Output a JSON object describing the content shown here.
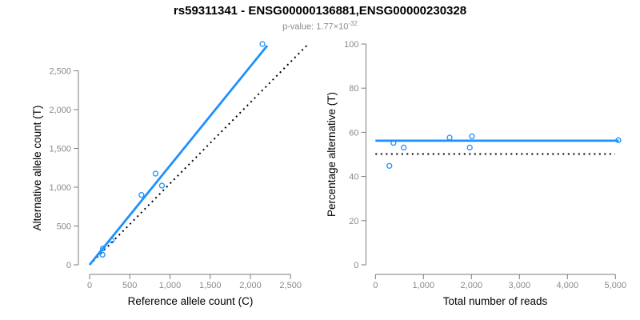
{
  "title": "rs59311341 - ENSG00000136881,ENSG00000230328",
  "subtitle": {
    "prefix": "p-value: ",
    "mantissa": "1.77",
    "times": "×10",
    "exponent": "-32"
  },
  "colors": {
    "accent_blue": "#1E90FF",
    "dotted_black": "#000000",
    "axis_gray": "#7b7b7b",
    "tick_label_gray": "#8a8a8a",
    "subtitle_gray": "#8c8c8c",
    "text_black": "#000000",
    "background": "#ffffff"
  },
  "chart_data": [
    {
      "type": "scatter",
      "panel": "left",
      "xlabel": "Reference allele count (C)",
      "ylabel": "Alternative allele count (T)",
      "xlim": [
        0,
        2500
      ],
      "ylim": [
        0,
        2500
      ],
      "xticks": [
        0,
        500,
        1000,
        1500,
        2000,
        2500
      ],
      "yticks": [
        0,
        500,
        1000,
        1500,
        2000,
        2500
      ],
      "xtick_labels": [
        "0",
        "500",
        "1,000",
        "1,500",
        "2,000",
        "2,500"
      ],
      "ytick_labels": [
        "0",
        "500",
        "1,000",
        "1,500",
        "2,000",
        "2,500"
      ],
      "grid": false,
      "legend": null,
      "points": [
        [
          160,
          130
        ],
        [
          165,
          210
        ],
        [
          275,
          313
        ],
        [
          645,
          900
        ],
        [
          820,
          1175
        ],
        [
          900,
          1020
        ],
        [
          2150,
          2845
        ]
      ],
      "lines": [
        {
          "name": "identity-line",
          "x1": 0,
          "y1": 0,
          "x2": 2730,
          "y2": 2855,
          "style": "dotted",
          "color": "#000000"
        },
        {
          "name": "regression-line",
          "x1": 0,
          "y1": 0,
          "x2": 2210,
          "y2": 2825,
          "style": "solid",
          "color": "#1E90FF"
        }
      ]
    },
    {
      "type": "scatter",
      "panel": "right",
      "xlabel": "Total number of reads",
      "ylabel": "Percentage alternative (T)",
      "xlim": [
        0,
        5000
      ],
      "ylim": [
        0,
        100
      ],
      "xticks": [
        0,
        1000,
        2000,
        3000,
        4000,
        5000
      ],
      "yticks": [
        0,
        20,
        40,
        60,
        80,
        100
      ],
      "xtick_labels": [
        "0",
        "1,000",
        "2,000",
        "3,000",
        "4,000",
        "5,000"
      ],
      "ytick_labels": [
        "0",
        "20",
        "40",
        "60",
        "80",
        "100"
      ],
      "grid": false,
      "legend": null,
      "points": [
        [
          290,
          44.8
        ],
        [
          375,
          55.2
        ],
        [
          590,
          53.1
        ],
        [
          1545,
          57.6
        ],
        [
          1965,
          53.1
        ],
        [
          2010,
          58.2
        ],
        [
          5060,
          56.4
        ]
      ],
      "lines": [
        {
          "name": "fifty-percent-line",
          "x1": 0,
          "y1": 50.2,
          "x2": 4990,
          "y2": 50.2,
          "style": "dotted",
          "color": "#000000"
        },
        {
          "name": "mean-percentage-line",
          "x1": 0,
          "y1": 56.2,
          "x2": 5070,
          "y2": 56.2,
          "style": "solid",
          "color": "#1E90FF"
        }
      ]
    }
  ]
}
